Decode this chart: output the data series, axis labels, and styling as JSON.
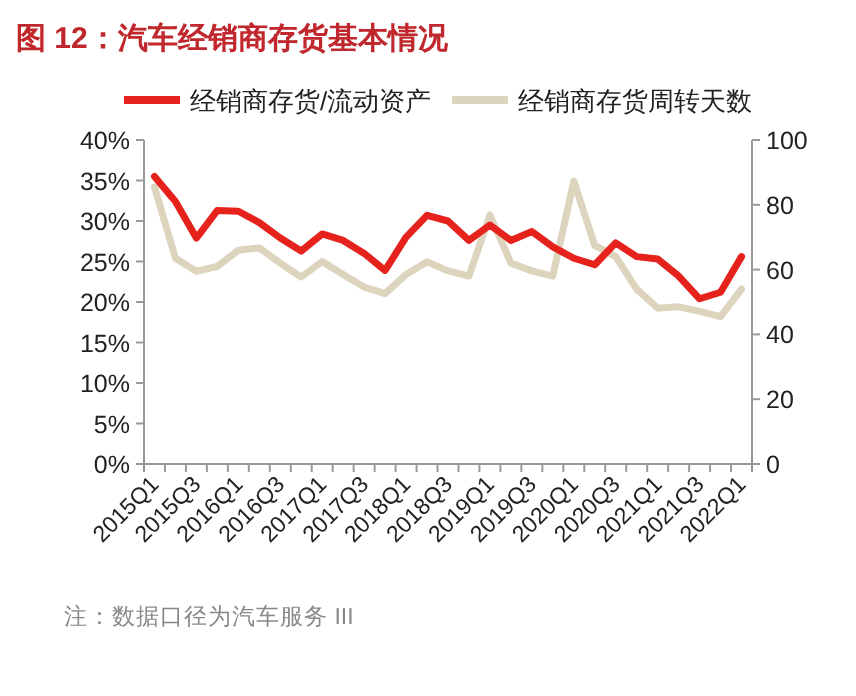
{
  "chart_data": {
    "type": "line",
    "title": "图 12：汽车经销商存货基本情况",
    "categories": [
      "2015Q1",
      null,
      "2015Q3",
      null,
      "2016Q1",
      null,
      "2016Q3",
      null,
      "2017Q1",
      null,
      "2017Q3",
      null,
      "2018Q1",
      null,
      "2018Q3",
      null,
      "2019Q1",
      null,
      "2019Q3",
      null,
      "2020Q1",
      null,
      "2020Q3",
      null,
      "2021Q1",
      null,
      "2021Q3",
      null,
      "2022Q1"
    ],
    "series": [
      {
        "name": "经销商存货/流动资产",
        "color": "#e5231c",
        "values": [
          35.5,
          32.4,
          27.9,
          31.3,
          31.2,
          29.8,
          27.9,
          26.3,
          28.4,
          27.6,
          26.0,
          23.9,
          28.0,
          30.7,
          30.0,
          27.6,
          29.5,
          27.6,
          28.7,
          26.8,
          25.4,
          24.6,
          27.3,
          25.6,
          25.3,
          23.2,
          20.4,
          21.2,
          25.6
        ]
      },
      {
        "name": "经销商存货周转天数",
        "color": "#ddd4be",
        "axis": "y2",
        "values": [
          85.5,
          63.5,
          59.5,
          61,
          66,
          66.7,
          62,
          57.7,
          62.5,
          58.5,
          54.6,
          52.6,
          58.5,
          62.4,
          59.6,
          58,
          76.8,
          62,
          59.6,
          58,
          87.3,
          67.5,
          64,
          54,
          48.1,
          48.5,
          47.1,
          45.5,
          54
        ]
      }
    ],
    "ylim": [
      0,
      40
    ],
    "yticks": [
      {
        "value": 0,
        "label": "0%"
      },
      {
        "value": 5,
        "label": "5%"
      },
      {
        "value": 10,
        "label": "10%"
      },
      {
        "value": 15,
        "label": "15%"
      },
      {
        "value": 20,
        "label": "20%"
      },
      {
        "value": 25,
        "label": "25%"
      },
      {
        "value": 30,
        "label": "30%"
      },
      {
        "value": 35,
        "label": "35%"
      },
      {
        "value": 40,
        "label": "40%"
      }
    ],
    "y2lim": [
      0,
      100
    ],
    "y2ticks": [
      0,
      20,
      40,
      60,
      80,
      100
    ],
    "legend": "top",
    "grid": false,
    "annotations": [
      "注：数据口径为汽车服务 III"
    ]
  }
}
